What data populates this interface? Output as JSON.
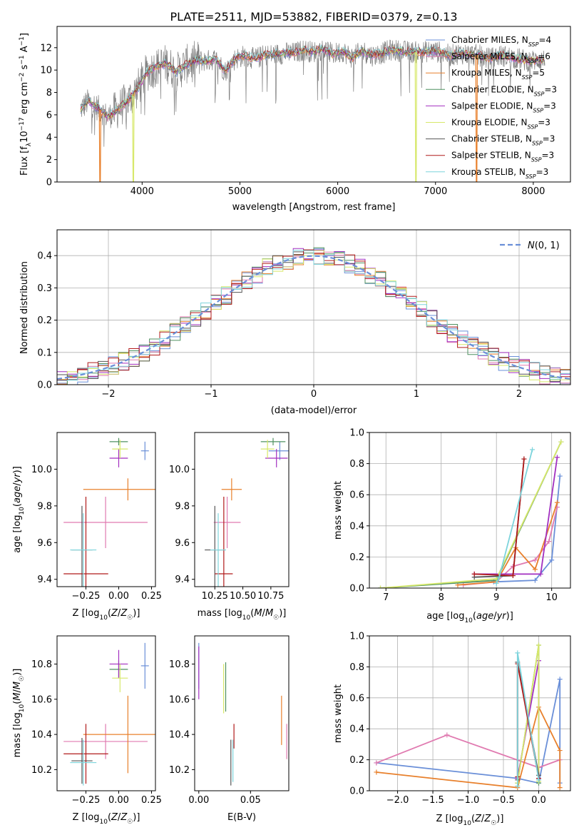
{
  "figure": {
    "title": "PLATE=2511, MJD=53882, FIBERID=0379, z=0.13"
  },
  "colors": {
    "Chabrier MILES": "#6a8fd8",
    "Salpeter MILES": "#e07ab0",
    "Kroupa MILES": "#e8802c",
    "Chabrier ELODIE": "#4f9160",
    "Salpeter ELODIE": "#a22fc0",
    "Kroupa ELODIE": "#d7e86a",
    "Chabrier STELIB": "#555555",
    "Salpeter STELIB": "#b01a1a",
    "Kroupa STELIB": "#7dd4dc",
    "data": "#808080",
    "normal": "#6a8fd8"
  },
  "legend_labels": [
    {
      "pre": "Chabrier MILES, N",
      "sub": "SSP",
      "post": "=4"
    },
    {
      "pre": "Salpeter MILES, N",
      "sub": "SSP",
      "post": "=6"
    },
    {
      "pre": "Kroupa MILES, N",
      "sub": "SSP",
      "post": "=5"
    },
    {
      "pre": "Chabrier ELODIE, N",
      "sub": "SSP",
      "post": "=3"
    },
    {
      "pre": "Salpeter ELODIE, N",
      "sub": "SSP",
      "post": "=3"
    },
    {
      "pre": "Kroupa ELODIE, N",
      "sub": "SSP",
      "post": "=3"
    },
    {
      "pre": "Chabrier STELIB, N",
      "sub": "SSP",
      "post": "=3"
    },
    {
      "pre": "Salpeter STELIB, N",
      "sub": "SSP",
      "post": "=3"
    },
    {
      "pre": "Kroupa STELIB, N",
      "sub": "SSP",
      "post": "=3"
    }
  ],
  "chart_data": [
    {
      "id": "spectrum",
      "type": "line",
      "title": "PLATE=2511, MJD=53882, FIBERID=0379, z=0.13",
      "xlabel": "wavelength [Angstrom, rest frame]",
      "ylabel": "Flux [fλ10⁻¹⁷ erg cm⁻² s⁻¹ A⁻¹]",
      "xlim": [
        3130,
        8380
      ],
      "ylim": [
        0,
        13.9
      ],
      "xticks": [
        4000,
        5000,
        6000,
        7000,
        8000
      ],
      "yticks": [
        0,
        2,
        4,
        6,
        8,
        10,
        12
      ],
      "grid": false,
      "legend_position": "upper right",
      "data_curve": {
        "x": [
          3370,
          3450,
          3550,
          3650,
          3750,
          3850,
          3950,
          4050,
          4150,
          4250,
          4350,
          4450,
          4550,
          4650,
          4750,
          4850,
          4950,
          5050,
          5150,
          5250,
          5350,
          5450,
          5550,
          5650,
          5750,
          5850,
          5950,
          6050,
          6150,
          6250,
          6350,
          6450,
          6550,
          6650,
          6750,
          6850,
          6950,
          7050,
          7150,
          7250,
          7350,
          7450,
          7550,
          7650,
          7750,
          7850,
          7950,
          8050,
          8120
        ],
        "y": [
          6.5,
          7.2,
          6.6,
          5.8,
          6.5,
          7.2,
          8.3,
          9.8,
          10.3,
          10.6,
          9.8,
          10.5,
          10.9,
          10.8,
          11.0,
          9.9,
          11.0,
          11.3,
          11.0,
          11.3,
          11.4,
          11.5,
          11.5,
          11.8,
          11.6,
          11.9,
          11.4,
          11.7,
          11.1,
          11.7,
          11.3,
          11.5,
          11.8,
          11.7,
          11.6,
          11.6,
          11.7,
          11.6,
          11.3,
          11.5,
          11.4,
          11.3,
          11.0,
          11.3,
          11.2,
          11.0,
          10.8,
          10.9,
          10.9
        ]
      },
      "dips": [
        {
          "x": 3570,
          "y": 0,
          "series": "Kroupa MILES"
        },
        {
          "x": 3910,
          "y": 0,
          "series": "Kroupa ELODIE"
        },
        {
          "x": 6800,
          "y": 0,
          "series": "Kroupa ELODIE"
        },
        {
          "x": 7420,
          "y": 0,
          "series": "Kroupa MILES"
        }
      ]
    },
    {
      "id": "residuals",
      "type": "histogram",
      "xlabel": "(data-model)/error",
      "ylabel": "Normed distribution",
      "xlim": [
        -2.5,
        2.5
      ],
      "ylim": [
        0,
        0.48
      ],
      "xticks": [
        -2,
        -1,
        0,
        1,
        2
      ],
      "yticks": [
        0.0,
        0.1,
        0.2,
        0.3,
        0.4
      ],
      "grid": true,
      "legend": "N(0,1)",
      "legend_position": "upper right",
      "bin_width": 0.1
    },
    {
      "id": "Z-age",
      "type": "errorbar",
      "xlabel": "Z [log10(Z/Z☉)]",
      "ylabel": "age [log10(age/yr)]",
      "xlim": [
        -0.47,
        0.28
      ],
      "ylim": [
        9.36,
        10.2
      ],
      "xticks": [
        -0.25,
        0.0,
        0.25
      ],
      "yticks": [
        9.4,
        9.6,
        9.8,
        10.0
      ],
      "points": [
        {
          "series": "Chabrier MILES",
          "x": 0.2,
          "y": 10.1,
          "xerr": 0.03,
          "yerr": 0.05
        },
        {
          "series": "Salpeter MILES",
          "x": -0.1,
          "y": 9.71,
          "xerr": 0.32,
          "yerr": 0.14
        },
        {
          "series": "Kroupa MILES",
          "x": 0.07,
          "y": 9.89,
          "xerr": 0.34,
          "yerr": 0.06
        },
        {
          "series": "Chabrier ELODIE",
          "x": 0.0,
          "y": 10.15,
          "xerr": 0.07,
          "yerr": 0.02
        },
        {
          "series": "Salpeter ELODIE",
          "x": -0.0,
          "y": 10.06,
          "xerr": 0.07,
          "yerr": 0.05
        },
        {
          "series": "Kroupa ELODIE",
          "x": 0.01,
          "y": 10.11,
          "xerr": 0.06,
          "yerr": 0.05
        },
        {
          "series": "Chabrier STELIB",
          "x": -0.28,
          "y": 9.56,
          "xerr": 0.08,
          "yerr": 0.24
        },
        {
          "series": "Salpeter STELIB",
          "x": -0.25,
          "y": 9.43,
          "xerr": 0.17,
          "yerr": 0.42
        },
        {
          "series": "Kroupa STELIB",
          "x": -0.27,
          "y": 9.56,
          "xerr": 0.1,
          "yerr": 0.2
        }
      ]
    },
    {
      "id": "mass-age",
      "type": "errorbar",
      "xlabel": "mass [log10(M/M☉)]",
      "ylabel": "",
      "xlim": [
        10.07,
        10.91
      ],
      "ylim": [
        9.36,
        10.2
      ],
      "xticks": [
        10.25,
        10.5,
        10.75
      ],
      "yticks": [
        9.4,
        9.6,
        9.8,
        10.0
      ],
      "points": [
        {
          "series": "Chabrier MILES",
          "x": 10.83,
          "y": 10.1,
          "xerr": 0.1,
          "yerr": 0.05
        },
        {
          "series": "Salpeter MILES",
          "x": 10.36,
          "y": 9.71,
          "xerr": 0.12,
          "yerr": 0.14
        },
        {
          "series": "Kroupa MILES",
          "x": 10.4,
          "y": 9.89,
          "xerr": 0.09,
          "yerr": 0.06
        },
        {
          "series": "Chabrier ELODIE",
          "x": 10.77,
          "y": 10.15,
          "xerr": 0.11,
          "yerr": 0.02
        },
        {
          "series": "Salpeter ELODIE",
          "x": 10.8,
          "y": 10.06,
          "xerr": 0.1,
          "yerr": 0.05
        },
        {
          "series": "Kroupa ELODIE",
          "x": 10.72,
          "y": 10.11,
          "xerr": 0.06,
          "yerr": 0.05
        },
        {
          "series": "Chabrier STELIB",
          "x": 10.25,
          "y": 9.56,
          "xerr": 0.09,
          "yerr": 0.24
        },
        {
          "series": "Salpeter STELIB",
          "x": 10.33,
          "y": 9.43,
          "xerr": 0.08,
          "yerr": 0.42
        },
        {
          "series": "Kroupa STELIB",
          "x": 10.28,
          "y": 9.56,
          "xerr": 0.07,
          "yerr": 0.2
        }
      ]
    },
    {
      "id": "age-weight",
      "type": "line",
      "xlabel": "age [log10(age/yr)]",
      "ylabel": "mass weight",
      "xlim": [
        6.7,
        10.34
      ],
      "ylim": [
        0,
        1.0
      ],
      "xticks": [
        7,
        8,
        9,
        10
      ],
      "yticks": [
        0.0,
        0.2,
        0.4,
        0.6,
        0.8,
        1.0
      ],
      "grid": true,
      "series": [
        {
          "series": "Chabrier MILES",
          "x": [
            8.95,
            9.7,
            10.0,
            10.15
          ],
          "y": [
            0.04,
            0.05,
            0.18,
            0.72
          ]
        },
        {
          "series": "Salpeter MILES",
          "x": [
            8.4,
            9.0,
            9.3,
            9.7,
            9.95,
            10.1
          ],
          "y": [
            0.02,
            0.04,
            0.14,
            0.18,
            0.3,
            0.52
          ]
        },
        {
          "series": "Kroupa MILES",
          "x": [
            8.3,
            9.0,
            9.35,
            9.7,
            10.1
          ],
          "y": [
            0.02,
            0.04,
            0.26,
            0.12,
            0.55
          ]
        },
        {
          "series": "Chabrier ELODIE",
          "x": [
            6.9,
            9.0,
            10.17
          ],
          "y": [
            0.0,
            0.05,
            0.94
          ]
        },
        {
          "series": "Salpeter ELODIE",
          "x": [
            8.6,
            9.8,
            10.1
          ],
          "y": [
            0.09,
            0.09,
            0.84
          ]
        },
        {
          "series": "Kroupa ELODIE",
          "x": [
            6.9,
            9.0,
            10.17
          ],
          "y": [
            0.0,
            0.06,
            0.94
          ]
        },
        {
          "series": "Chabrier STELIB",
          "x": [
            8.6,
            9.3,
            9.5
          ],
          "y": [
            0.07,
            0.08,
            0.83
          ]
        },
        {
          "series": "Salpeter STELIB",
          "x": [
            8.6,
            9.3,
            9.5
          ],
          "y": [
            0.09,
            0.08,
            0.83
          ]
        },
        {
          "series": "Kroupa STELIB",
          "x": [
            9.0,
            9.05,
            9.65
          ],
          "y": [
            0.03,
            0.07,
            0.89
          ]
        }
      ]
    },
    {
      "id": "Z-mass",
      "type": "errorbar",
      "xlabel": "Z [log10(Z/Z☉)]",
      "ylabel": "mass [log10(M/M☉)]",
      "xlim": [
        -0.47,
        0.28
      ],
      "ylim": [
        10.08,
        10.96
      ],
      "xticks": [
        -0.25,
        0.0,
        0.25
      ],
      "yticks": [
        10.2,
        10.4,
        10.6,
        10.8
      ],
      "points": [
        {
          "series": "Chabrier MILES",
          "x": 0.2,
          "y": 10.79,
          "xerr": 0.03,
          "yerr": 0.13
        },
        {
          "series": "Salpeter MILES",
          "x": -0.1,
          "y": 10.36,
          "xerr": 0.32,
          "yerr": 0.1
        },
        {
          "series": "Kroupa MILES",
          "x": 0.07,
          "y": 10.4,
          "xerr": 0.34,
          "yerr": 0.22
        },
        {
          "series": "Chabrier ELODIE",
          "x": 0.0,
          "y": 10.77,
          "xerr": 0.07,
          "yerr": 0.05
        },
        {
          "series": "Salpeter ELODIE",
          "x": -0.0,
          "y": 10.8,
          "xerr": 0.07,
          "yerr": 0.08
        },
        {
          "series": "Kroupa ELODIE",
          "x": 0.01,
          "y": 10.72,
          "xerr": 0.06,
          "yerr": 0.08
        },
        {
          "series": "Chabrier STELIB",
          "x": -0.28,
          "y": 10.25,
          "xerr": 0.08,
          "yerr": 0.13
        },
        {
          "series": "Salpeter STELIB",
          "x": -0.25,
          "y": 10.29,
          "xerr": 0.17,
          "yerr": 0.17
        },
        {
          "series": "Kroupa STELIB",
          "x": -0.27,
          "y": 10.24,
          "xerr": 0.1,
          "yerr": 0.13
        }
      ]
    },
    {
      "id": "ebv-mass",
      "type": "errorbar",
      "xlabel": "E(B-V)",
      "ylabel": "",
      "xlim": [
        -0.004,
        0.087
      ],
      "ylim": [
        10.08,
        10.96
      ],
      "xticks": [
        0.0,
        0.05
      ],
      "yticks": [
        10.2,
        10.4,
        10.6,
        10.8
      ],
      "points": [
        {
          "series": "Chabrier MILES",
          "x": 0.0,
          "y": 10.79,
          "xerr": 0,
          "yerr": 0.13
        },
        {
          "series": "Salpeter MILES",
          "x": 0.085,
          "y": 10.36,
          "xerr": 0,
          "yerr": 0.1
        },
        {
          "series": "Kroupa MILES",
          "x": 0.08,
          "y": 10.48,
          "xerr": 0,
          "yerr": 0.14
        },
        {
          "series": "Chabrier ELODIE",
          "x": 0.026,
          "y": 10.67,
          "xerr": 0,
          "yerr": 0.14
        },
        {
          "series": "Salpeter ELODIE",
          "x": 0.0,
          "y": 10.75,
          "xerr": 0,
          "yerr": 0.15
        },
        {
          "series": "Kroupa ELODIE",
          "x": 0.024,
          "y": 10.66,
          "xerr": 0,
          "yerr": 0.14
        },
        {
          "series": "Chabrier STELIB",
          "x": 0.031,
          "y": 10.24,
          "xerr": 0,
          "yerr": 0.13
        },
        {
          "series": "Salpeter STELIB",
          "x": 0.034,
          "y": 10.39,
          "xerr": 0,
          "yerr": 0.07
        },
        {
          "series": "Kroupa STELIB",
          "x": 0.033,
          "y": 10.25,
          "xerr": 0,
          "yerr": 0.12
        }
      ]
    },
    {
      "id": "Z-weight",
      "type": "line",
      "xlabel": "Z [log10(Z/Z☉)]",
      "ylabel": "mass weight",
      "xlim": [
        -2.4,
        0.45
      ],
      "ylim": [
        0,
        1.0
      ],
      "xticks": [
        -2.0,
        -1.5,
        -1.0,
        -0.5,
        0.0
      ],
      "yticks": [
        0.0,
        0.2,
        0.4,
        0.6,
        0.8,
        1.0
      ],
      "grid": true,
      "series": [
        {
          "series": "Chabrier MILES",
          "x": [
            -2.3,
            -0.3,
            0.0,
            0.3,
            0.3
          ],
          "y": [
            0.18,
            0.08,
            0.05,
            0.72,
            0.05
          ]
        },
        {
          "series": "Salpeter MILES",
          "x": [
            -2.3,
            -1.3,
            0.0,
            0.3
          ],
          "y": [
            0.18,
            0.36,
            0.15,
            0.2
          ]
        },
        {
          "series": "Kroupa MILES",
          "x": [
            -2.3,
            -0.3,
            0.0,
            0.3,
            0.3
          ],
          "y": [
            0.12,
            0.02,
            0.54,
            0.26,
            0.02
          ]
        },
        {
          "series": "Chabrier ELODIE",
          "x": [
            -0.3,
            0.0,
            0.0
          ],
          "y": [
            0.05,
            0.94,
            0.05
          ]
        },
        {
          "series": "Salpeter ELODIE",
          "x": [
            -0.3,
            0.0,
            0.0
          ],
          "y": [
            0.08,
            0.84,
            0.08
          ]
        },
        {
          "series": "Kroupa ELODIE",
          "x": [
            -0.3,
            0.0,
            0.0
          ],
          "y": [
            0.05,
            0.94,
            0.06
          ]
        },
        {
          "series": "Chabrier STELIB",
          "x": [
            -0.3,
            -0.3,
            0.0
          ],
          "y": [
            0.07,
            0.83,
            0.1
          ]
        },
        {
          "series": "Salpeter STELIB",
          "x": [
            -0.3,
            -0.3,
            0.0
          ],
          "y": [
            0.09,
            0.82,
            0.08
          ]
        },
        {
          "series": "Kroupa STELIB",
          "x": [
            -0.3,
            -0.3,
            0.0
          ],
          "y": [
            0.03,
            0.89,
            0.07
          ]
        }
      ]
    }
  ]
}
